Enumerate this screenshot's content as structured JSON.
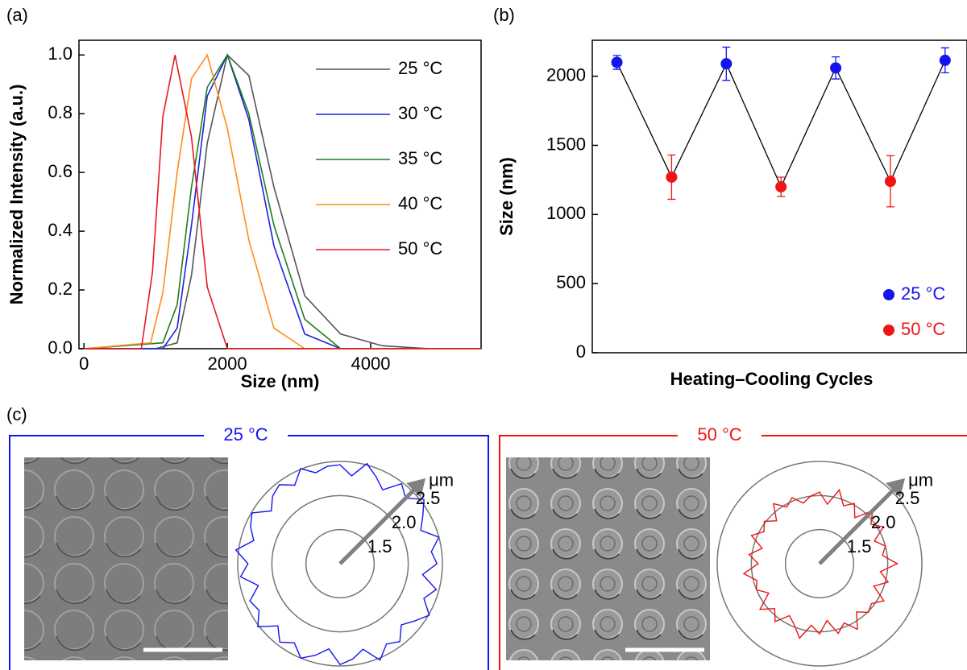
{
  "panels": [
    "(a)",
    "(b)",
    "(c)"
  ],
  "chart_data": [
    {
      "type": "line",
      "xlabel": "Size (nm)",
      "ylabel": "Normalized Intensity (a.u.)",
      "xlim": [
        -70,
        5540
      ],
      "ylim": [
        0,
        1.05
      ],
      "xticks": [
        0,
        2000,
        4000
      ],
      "yticks": [
        {
          "value": 0,
          "label": "0.0"
        },
        0.2,
        0.4,
        0.6,
        0.8,
        {
          "value": 1,
          "label": "1.0"
        }
      ],
      "series": [
        {
          "name": "25 °C",
          "color": "#555555",
          "x": [
            0,
            1000,
            1300,
            1500,
            1720,
            2000,
            2300,
            2650,
            3080,
            3580,
            4160,
            4820,
            5540
          ],
          "values": [
            0,
            0,
            0.02,
            0.25,
            0.7,
            1.0,
            0.93,
            0.55,
            0.18,
            0.05,
            0.01,
            0,
            0
          ]
        },
        {
          "name": "30 °C",
          "color": "#1f1fe0",
          "x": [
            0,
            1100,
            1300,
            1500,
            1720,
            2000,
            2300,
            2650,
            3080,
            3580,
            5540
          ],
          "values": [
            0,
            0,
            0.07,
            0.42,
            0.86,
            1.0,
            0.78,
            0.35,
            0.05,
            0,
            0
          ]
        },
        {
          "name": "35 °C",
          "color": "#1e7d1e",
          "x": [
            0,
            1100,
            1300,
            1500,
            1720,
            2000,
            2300,
            2650,
            3080,
            3580,
            5540
          ],
          "values": [
            0,
            0.02,
            0.15,
            0.55,
            0.89,
            1.0,
            0.8,
            0.42,
            0.1,
            0,
            0
          ]
        },
        {
          "name": "40 °C",
          "color": "#ff8c1a",
          "x": [
            0,
            930,
            1100,
            1300,
            1500,
            1720,
            2000,
            2300,
            2650,
            3080,
            5540
          ],
          "values": [
            0,
            0.02,
            0.19,
            0.6,
            0.92,
            1.0,
            0.75,
            0.37,
            0.07,
            0,
            0
          ]
        },
        {
          "name": "50 °C",
          "color": "#e8191e",
          "x": [
            0,
            800,
            955,
            1100,
            1270,
            1500,
            1720,
            2000,
            5540
          ],
          "values": [
            0,
            0,
            0.26,
            0.79,
            1.0,
            0.72,
            0.21,
            0,
            0
          ]
        }
      ]
    },
    {
      "type": "errorbar",
      "xlabel": "Heating–Cooling Cycles",
      "ylabel": "Size (nm)",
      "xlim": [
        0.55,
        7.4
      ],
      "ylim": [
        0,
        2260
      ],
      "yticks": [
        0,
        500,
        1000,
        1500,
        2000
      ],
      "series": [
        {
          "name": "25 °C",
          "color": "#1414f0",
          "x": [
            1,
            3,
            5,
            7
          ],
          "values": [
            2100,
            2090,
            2060,
            2115
          ],
          "errors": [
            50,
            120,
            80,
            90
          ]
        },
        {
          "name": "50 °C",
          "color": "#f01414",
          "x": [
            2,
            4,
            6
          ],
          "values": [
            1270,
            1200,
            1240
          ],
          "errors": [
            160,
            70,
            185
          ]
        }
      ]
    },
    {
      "type": "polar",
      "title": "25 °C",
      "color": "#1414f0",
      "unit": "μm",
      "rlim": [
        1,
        2.5
      ],
      "rticks": [
        1.5,
        {
          "value": 2,
          "label": "2.0"
        },
        2.5
      ],
      "r": [
        2.45,
        2.3,
        2.52,
        2.38,
        2.25,
        2.48,
        2.36,
        2.55,
        2.4,
        2.28,
        2.5,
        2.35,
        2.42,
        2.22,
        2.46,
        2.33,
        2.51,
        2.38,
        2.27,
        2.44,
        2.36,
        2.53,
        2.3,
        2.41,
        2.48,
        2.26,
        2.39,
        2.5,
        2.34,
        2.45,
        2.29,
        2.52,
        2.37,
        2.43,
        2.24,
        2.47,
        2.35,
        2.54,
        2.31,
        2.42,
        2.49,
        2.27,
        2.4,
        2.46,
        2.33,
        2.51,
        2.38,
        2.44
      ]
    },
    {
      "type": "polar",
      "title": "50 °C",
      "color": "#f01414",
      "unit": "μm",
      "rlim": [
        1,
        2.5
      ],
      "rticks": [
        1.5,
        {
          "value": 2,
          "label": "2.0"
        },
        2.5
      ],
      "r": [
        2.05,
        1.88,
        2.12,
        1.92,
        2.02,
        1.85,
        2.1,
        1.95,
        2.08,
        1.87,
        2.0,
        1.93,
        2.14,
        1.9,
        2.04,
        1.86,
        2.09,
        1.96,
        2.01,
        1.89,
        2.11,
        1.94,
        2.06,
        1.84,
        2.03,
        1.91,
        2.13,
        1.97,
        1.88,
        2.07,
        1.93,
        2.1,
        1.86,
        2.0,
        1.95,
        2.12,
        1.9,
        2.04,
        1.87,
        2.08,
        1.94,
        2.02,
        1.89,
        2.11,
        1.96,
        2.05,
        1.92,
        2.0
      ]
    }
  ]
}
